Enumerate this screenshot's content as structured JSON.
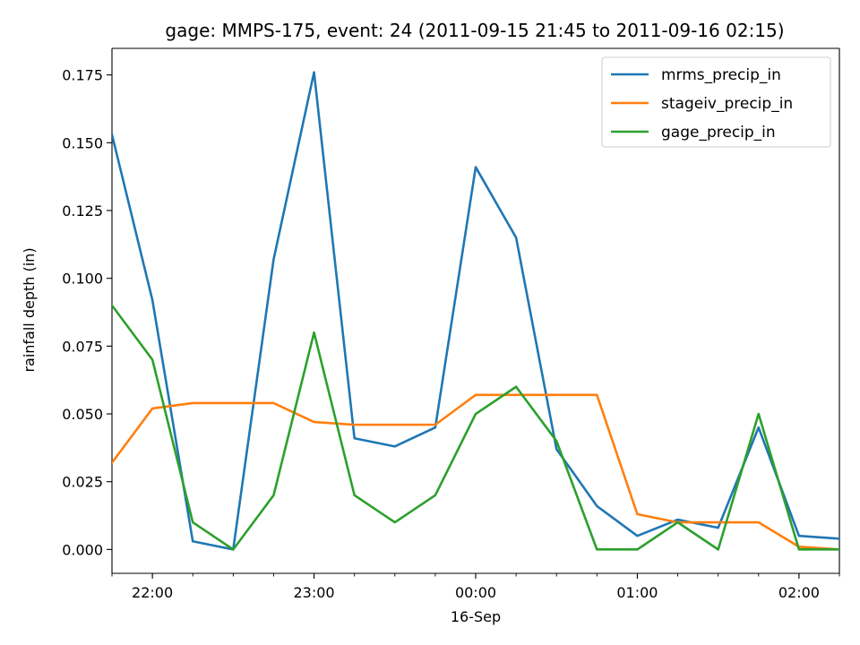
{
  "chart_data": {
    "type": "line",
    "title": "gage: MMPS-175, event: 24 (2011-09-15 21:45 to 2011-09-16 02:15)",
    "xlabel": "16-Sep",
    "ylabel": "rainfall depth (in)",
    "x": [
      "21:45",
      "22:00",
      "22:15",
      "22:30",
      "22:45",
      "23:00",
      "23:15",
      "23:30",
      "23:45",
      "00:00",
      "00:15",
      "00:30",
      "00:45",
      "01:00",
      "01:15",
      "01:30",
      "01:45",
      "02:00",
      "02:15"
    ],
    "x_minutes": [
      -135,
      -120,
      -105,
      -90,
      -75,
      -60,
      -45,
      -30,
      -15,
      0,
      15,
      30,
      45,
      60,
      75,
      90,
      105,
      120,
      135
    ],
    "xlim_minutes": [
      -135,
      135
    ],
    "xticks": [
      {
        "label": "22:00",
        "minutes": -120
      },
      {
        "label": "23:00",
        "minutes": -60
      },
      {
        "label": "00:00",
        "minutes": 0
      },
      {
        "label": "01:00",
        "minutes": 60
      },
      {
        "label": "02:00",
        "minutes": 120
      }
    ],
    "ylim": [
      -0.0088,
      0.1848
    ],
    "yticks": [
      {
        "label": "0.000",
        "value": 0.0
      },
      {
        "label": "0.025",
        "value": 0.025
      },
      {
        "label": "0.050",
        "value": 0.05
      },
      {
        "label": "0.075",
        "value": 0.075
      },
      {
        "label": "0.100",
        "value": 0.1
      },
      {
        "label": "0.125",
        "value": 0.125
      },
      {
        "label": "0.150",
        "value": 0.15
      },
      {
        "label": "0.175",
        "value": 0.175
      }
    ],
    "legend_position": "top-right",
    "grid": false,
    "series": [
      {
        "name": "mrms_precip_in",
        "color": "#1f77b4",
        "values": [
          0.153,
          0.092,
          0.003,
          0.0,
          0.107,
          0.176,
          0.041,
          0.038,
          0.045,
          0.141,
          0.115,
          0.037,
          0.016,
          0.005,
          0.011,
          0.008,
          0.045,
          0.005,
          0.004
        ]
      },
      {
        "name": "stageiv_precip_in",
        "color": "#ff7f0e",
        "values": [
          0.032,
          0.052,
          0.054,
          0.054,
          0.054,
          0.047,
          0.046,
          0.046,
          0.046,
          0.057,
          0.057,
          0.057,
          0.057,
          0.013,
          0.01,
          0.01,
          0.01,
          0.001,
          0.0
        ]
      },
      {
        "name": "gage_precip_in",
        "color": "#2ca02c",
        "values": [
          0.09,
          0.07,
          0.01,
          0.0,
          0.02,
          0.08,
          0.02,
          0.01,
          0.02,
          0.05,
          0.06,
          0.04,
          0.0,
          0.0,
          0.01,
          0.0,
          0.05,
          0.0,
          0.0
        ]
      }
    ]
  }
}
